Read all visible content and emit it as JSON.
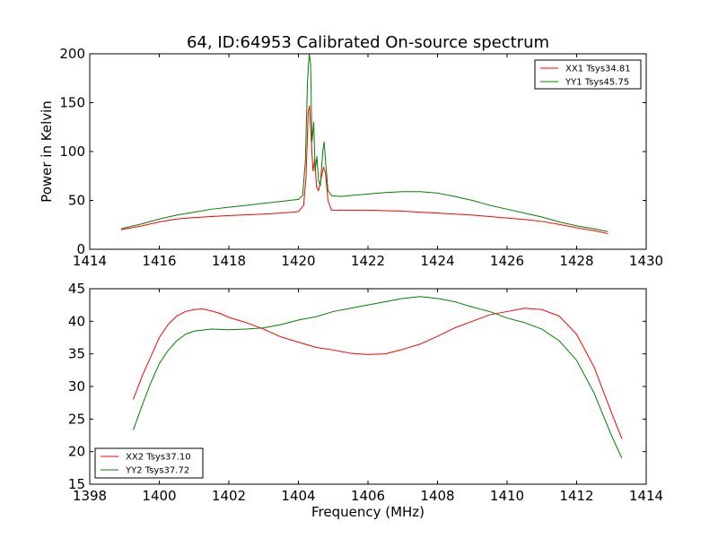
{
  "chart_data": [
    {
      "type": "line",
      "title": "64, ID:64953 Calibrated On-source spectrum",
      "xlabel": "",
      "ylabel": "Power in Kelvin",
      "xlim": [
        1414,
        1430
      ],
      "ylim": [
        0,
        200
      ],
      "xticks": [
        1414,
        1416,
        1418,
        1420,
        1422,
        1424,
        1426,
        1428,
        1430
      ],
      "yticks": [
        0,
        50,
        100,
        150,
        200
      ],
      "legend": "top-right",
      "series": [
        {
          "name": "XX1 Tsys34.81",
          "color": "#ff0000",
          "points": [
            [
              1414.9,
              20
            ],
            [
              1415.5,
              24
            ],
            [
              1416.0,
              28
            ],
            [
              1416.5,
              31
            ],
            [
              1417.0,
              32.5
            ],
            [
              1417.5,
              33.5
            ],
            [
              1418.0,
              34.5
            ],
            [
              1418.5,
              35.2
            ],
            [
              1419.0,
              36
            ],
            [
              1419.5,
              37
            ],
            [
              1420.0,
              38.5
            ],
            [
              1420.15,
              45
            ],
            [
              1420.22,
              75
            ],
            [
              1420.28,
              140
            ],
            [
              1420.32,
              147
            ],
            [
              1420.36,
              118
            ],
            [
              1420.42,
              80
            ],
            [
              1420.47,
              92
            ],
            [
              1420.52,
              64
            ],
            [
              1420.58,
              60
            ],
            [
              1420.65,
              72
            ],
            [
              1420.72,
              84
            ],
            [
              1420.78,
              78
            ],
            [
              1420.85,
              50
            ],
            [
              1420.95,
              40
            ],
            [
              1421.2,
              40
            ],
            [
              1422.0,
              40
            ],
            [
              1422.5,
              39.5
            ],
            [
              1423.0,
              39
            ],
            [
              1423.5,
              38
            ],
            [
              1424.0,
              37
            ],
            [
              1424.5,
              36
            ],
            [
              1425.0,
              35
            ],
            [
              1425.5,
              33.5
            ],
            [
              1426.0,
              32
            ],
            [
              1426.5,
              30.5
            ],
            [
              1427.0,
              28.5
            ],
            [
              1427.5,
              25.5
            ],
            [
              1428.0,
              22
            ],
            [
              1428.5,
              19
            ],
            [
              1428.9,
              16
            ]
          ]
        },
        {
          "name": "YY1 Tsys45.75",
          "color": "#008000",
          "points": [
            [
              1414.9,
              21
            ],
            [
              1415.5,
              26
            ],
            [
              1416.0,
              31
            ],
            [
              1416.5,
              35
            ],
            [
              1417.0,
              38
            ],
            [
              1417.5,
              41
            ],
            [
              1418.0,
              43
            ],
            [
              1418.5,
              45
            ],
            [
              1419.0,
              47
            ],
            [
              1419.5,
              49
            ],
            [
              1420.0,
              51
            ],
            [
              1420.12,
              55
            ],
            [
              1420.2,
              90
            ],
            [
              1420.26,
              170
            ],
            [
              1420.31,
              200
            ],
            [
              1420.35,
              190
            ],
            [
              1420.39,
              110
            ],
            [
              1420.44,
              130
            ],
            [
              1420.48,
              80
            ],
            [
              1420.53,
              95
            ],
            [
              1420.58,
              70
            ],
            [
              1420.63,
              65
            ],
            [
              1420.7,
              100
            ],
            [
              1420.74,
              110
            ],
            [
              1420.78,
              90
            ],
            [
              1420.85,
              60
            ],
            [
              1420.95,
              55
            ],
            [
              1421.2,
              54
            ],
            [
              1421.5,
              55
            ],
            [
              1422.0,
              56.5
            ],
            [
              1422.5,
              58
            ],
            [
              1423.0,
              59
            ],
            [
              1423.5,
              59
            ],
            [
              1424.0,
              57.5
            ],
            [
              1424.5,
              54
            ],
            [
              1425.0,
              50
            ],
            [
              1425.5,
              45
            ],
            [
              1426.0,
              41
            ],
            [
              1426.5,
              37
            ],
            [
              1427.0,
              33
            ],
            [
              1427.5,
              28
            ],
            [
              1428.0,
              24
            ],
            [
              1428.5,
              21
            ],
            [
              1428.9,
              18
            ]
          ]
        }
      ]
    },
    {
      "type": "line",
      "title": "",
      "xlabel": "Frequency (MHz)",
      "ylabel": "",
      "xlim": [
        1398,
        1414
      ],
      "ylim": [
        15,
        45
      ],
      "xticks": [
        1398,
        1400,
        1402,
        1404,
        1406,
        1408,
        1410,
        1412,
        1414
      ],
      "yticks": [
        15,
        20,
        25,
        30,
        35,
        40,
        45
      ],
      "legend": "bottom-left",
      "series": [
        {
          "name": "XX2 Tsys37.10",
          "color": "#ff0000",
          "points": [
            [
              1399.25,
              28
            ],
            [
              1399.5,
              31.5
            ],
            [
              1399.75,
              34.5
            ],
            [
              1400.0,
              37.5
            ],
            [
              1400.25,
              39.5
            ],
            [
              1400.5,
              40.8
            ],
            [
              1400.75,
              41.5
            ],
            [
              1401.0,
              41.8
            ],
            [
              1401.25,
              41.9
            ],
            [
              1401.5,
              41.6
            ],
            [
              1401.75,
              41.2
            ],
            [
              1402.0,
              40.6
            ],
            [
              1402.5,
              39.8
            ],
            [
              1403.0,
              38.8
            ],
            [
              1403.5,
              37.6
            ],
            [
              1404.0,
              36.8
            ],
            [
              1404.5,
              36
            ],
            [
              1405.0,
              35.6
            ],
            [
              1405.5,
              35.1
            ],
            [
              1406.0,
              34.9
            ],
            [
              1406.5,
              35.0
            ],
            [
              1407.0,
              35.7
            ],
            [
              1407.5,
              36.5
            ],
            [
              1408.0,
              37.7
            ],
            [
              1408.5,
              39
            ],
            [
              1409.0,
              40
            ],
            [
              1409.5,
              41
            ],
            [
              1410.0,
              41.5
            ],
            [
              1410.5,
              42
            ],
            [
              1411.0,
              41.8
            ],
            [
              1411.5,
              40.8
            ],
            [
              1412.0,
              38
            ],
            [
              1412.5,
              33
            ],
            [
              1413.0,
              26
            ],
            [
              1413.3,
              22
            ]
          ]
        },
        {
          "name": "YY2 Tsys37.72",
          "color": "#008000",
          "points": [
            [
              1399.25,
              23.3
            ],
            [
              1399.5,
              27
            ],
            [
              1399.75,
              30.5
            ],
            [
              1400.0,
              33.5
            ],
            [
              1400.25,
              35.5
            ],
            [
              1400.5,
              37
            ],
            [
              1400.75,
              38
            ],
            [
              1401.0,
              38.5
            ],
            [
              1401.5,
              38.8
            ],
            [
              1402.0,
              38.7
            ],
            [
              1402.5,
              38.8
            ],
            [
              1403.0,
              39
            ],
            [
              1403.5,
              39.5
            ],
            [
              1404.0,
              40.2
            ],
            [
              1404.5,
              40.7
            ],
            [
              1405.0,
              41.5
            ],
            [
              1405.5,
              42
            ],
            [
              1406.0,
              42.5
            ],
            [
              1406.5,
              43
            ],
            [
              1407.0,
              43.5
            ],
            [
              1407.5,
              43.8
            ],
            [
              1408.0,
              43.5
            ],
            [
              1408.5,
              43
            ],
            [
              1409.0,
              42.2
            ],
            [
              1409.5,
              41.5
            ],
            [
              1410.0,
              40.5
            ],
            [
              1410.5,
              39.8
            ],
            [
              1411.0,
              38.8
            ],
            [
              1411.5,
              37
            ],
            [
              1412.0,
              34
            ],
            [
              1412.5,
              29
            ],
            [
              1413.0,
              22.5
            ],
            [
              1413.3,
              19
            ]
          ]
        }
      ]
    }
  ]
}
